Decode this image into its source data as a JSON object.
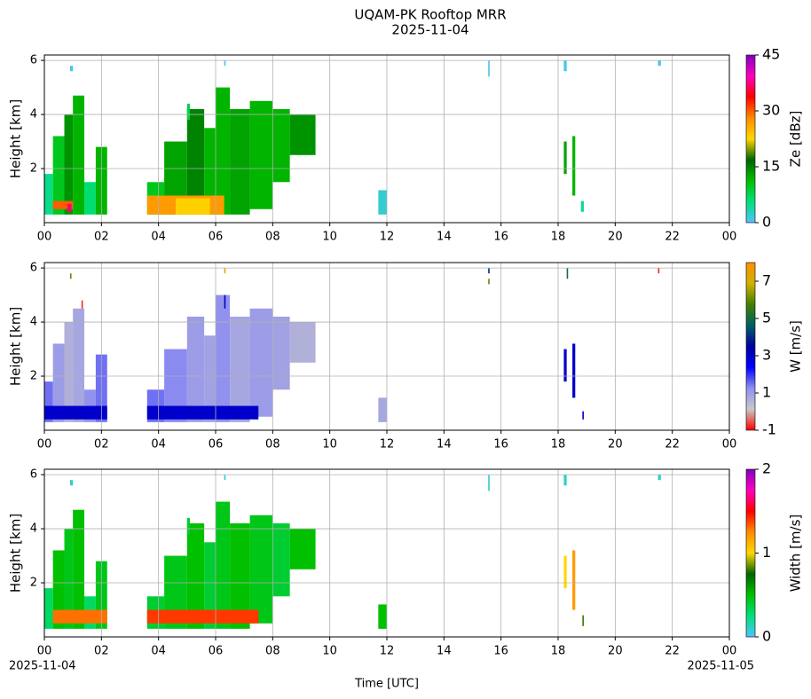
{
  "chart_data": {
    "type": "heatmap",
    "title": "UQAM-PK Rooftop MRR",
    "subtitle": "2025-11-04",
    "xlabel": "Time [UTC]",
    "date_start": "2025-11-04",
    "date_end": "2025-11-05",
    "xlim": [
      0,
      24
    ],
    "xticks": [
      {
        "value": 0,
        "label": "00"
      },
      {
        "value": 2,
        "label": "02"
      },
      {
        "value": 4,
        "label": "04"
      },
      {
        "value": 6,
        "label": "06"
      },
      {
        "value": 8,
        "label": "08"
      },
      10,
      12,
      14,
      16,
      18,
      20,
      22,
      {
        "value": 24,
        "label": "00"
      }
    ],
    "grid": true,
    "panels": [
      {
        "ylabel": "Height [km]",
        "ylim": [
          0,
          6.2
        ],
        "yticks": [
          2,
          4,
          6
        ],
        "colorbar": {
          "label": "Ze [dBz]",
          "lim": [
            0,
            45
          ],
          "ticks": [
            0,
            15,
            30,
            45
          ],
          "colors": [
            "#4fc3ff",
            "#00e07a",
            "#00c000",
            "#006400",
            "#ffd700",
            "#ff8c00",
            "#ff0000",
            "#ff00c0",
            "#8000c0"
          ]
        },
        "cells": [
          [
            0.0,
            0.3,
            0.3,
            1.8,
            5
          ],
          [
            0.3,
            0.7,
            0.3,
            3.2,
            10
          ],
          [
            0.7,
            1.0,
            0.3,
            4.0,
            14
          ],
          [
            1.0,
            1.4,
            0.3,
            4.7,
            12
          ],
          [
            1.4,
            1.8,
            0.3,
            1.5,
            6
          ],
          [
            1.8,
            2.2,
            0.3,
            2.8,
            12
          ],
          [
            0.3,
            1.0,
            0.5,
            0.8,
            30
          ],
          [
            0.8,
            0.95,
            0.4,
            0.7,
            37
          ],
          [
            3.6,
            4.2,
            0.3,
            1.5,
            10
          ],
          [
            4.2,
            5.0,
            0.3,
            3.0,
            13
          ],
          [
            5.0,
            5.6,
            0.3,
            4.2,
            15
          ],
          [
            5.6,
            6.0,
            0.3,
            3.5,
            12
          ],
          [
            6.0,
            6.5,
            0.3,
            5.0,
            12
          ],
          [
            6.5,
            7.2,
            0.3,
            4.2,
            13
          ],
          [
            7.2,
            8.0,
            0.5,
            4.5,
            12
          ],
          [
            8.0,
            8.6,
            1.5,
            4.2,
            12
          ],
          [
            8.6,
            9.5,
            2.5,
            4.0,
            14
          ],
          [
            3.6,
            6.3,
            0.3,
            1.0,
            27
          ],
          [
            4.6,
            5.8,
            0.3,
            0.9,
            23
          ],
          [
            11.7,
            12.0,
            0.3,
            1.2,
            2
          ],
          [
            18.2,
            18.3,
            1.8,
            3.0,
            13
          ],
          [
            18.5,
            18.6,
            1.0,
            3.2,
            12
          ],
          [
            18.8,
            18.9,
            0.4,
            0.8,
            5
          ],
          [
            0.9,
            1.0,
            5.6,
            5.8,
            1
          ],
          [
            5.0,
            5.1,
            3.8,
            4.4,
            8
          ],
          [
            6.3,
            6.35,
            5.8,
            6.0,
            1
          ],
          [
            15.55,
            15.6,
            5.4,
            6.0,
            1
          ],
          [
            18.2,
            18.3,
            5.6,
            6.0,
            1
          ],
          [
            21.5,
            21.6,
            5.8,
            6.0,
            1
          ]
        ]
      },
      {
        "ylabel": "Height [km]",
        "ylim": [
          0,
          6.2
        ],
        "yticks": [
          2,
          4,
          6
        ],
        "colorbar": {
          "label": "W [m/s]",
          "lim": [
            -1,
            8
          ],
          "ticks": [
            -1,
            1,
            3,
            5,
            7
          ],
          "colors": [
            "#ff0000",
            "#c8c8c8",
            "#9090f0",
            "#0000ff",
            "#0000a0",
            "#006060",
            "#408000",
            "#d0b000",
            "#ff9000"
          ]
        },
        "cells": [
          [
            0.0,
            0.3,
            0.3,
            1.8,
            1.5
          ],
          [
            0.3,
            0.7,
            0.3,
            3.2,
            1.0
          ],
          [
            0.7,
            1.0,
            0.3,
            4.0,
            0.6
          ],
          [
            1.0,
            1.4,
            0.3,
            4.5,
            0.8
          ],
          [
            1.4,
            1.8,
            0.3,
            1.5,
            1.2
          ],
          [
            1.8,
            2.2,
            0.3,
            2.8,
            1.5
          ],
          [
            0.0,
            2.2,
            0.4,
            0.9,
            3
          ],
          [
            3.6,
            4.2,
            0.3,
            1.5,
            1.5
          ],
          [
            4.2,
            5.0,
            0.3,
            3.0,
            1.3
          ],
          [
            5.0,
            5.6,
            0.3,
            4.2,
            1.0
          ],
          [
            5.6,
            6.0,
            0.3,
            3.5,
            0.9
          ],
          [
            6.0,
            6.5,
            0.3,
            5.0,
            1.2
          ],
          [
            6.5,
            7.2,
            0.3,
            4.2,
            0.8
          ],
          [
            7.2,
            8.0,
            0.5,
            4.5,
            1.0
          ],
          [
            8.0,
            8.6,
            1.5,
            4.2,
            0.9
          ],
          [
            8.6,
            9.5,
            2.5,
            4.0,
            0.6
          ],
          [
            3.6,
            7.5,
            0.4,
            0.9,
            3
          ],
          [
            11.7,
            12.0,
            0.3,
            1.2,
            0.8
          ],
          [
            18.2,
            18.3,
            1.8,
            3.0,
            3
          ],
          [
            18.5,
            18.6,
            1.2,
            3.2,
            3
          ],
          [
            18.85,
            18.9,
            0.4,
            0.7,
            3
          ],
          [
            0.9,
            0.95,
            5.6,
            5.8,
            6
          ],
          [
            1.3,
            1.35,
            4.5,
            4.8,
            -0.8
          ],
          [
            6.3,
            6.35,
            5.8,
            6.0,
            7.5
          ],
          [
            6.3,
            6.35,
            4.5,
            5.0,
            3
          ],
          [
            15.55,
            15.6,
            5.8,
            6.0,
            4
          ],
          [
            15.55,
            15.6,
            5.4,
            5.6,
            6
          ],
          [
            18.3,
            18.35,
            5.6,
            6.0,
            5
          ],
          [
            21.5,
            21.55,
            5.8,
            6.0,
            -0.8
          ]
        ]
      },
      {
        "ylabel": "Height [km]",
        "ylim": [
          0,
          6.2
        ],
        "yticks": [
          2,
          4,
          6
        ],
        "colorbar": {
          "label": "Width [m/s]",
          "lim": [
            0,
            2
          ],
          "ticks": [
            0,
            1,
            2
          ],
          "colors": [
            "#4fc3ff",
            "#00e07a",
            "#00c000",
            "#006400",
            "#ffd700",
            "#ff8c00",
            "#ff0000",
            "#ff00c0",
            "#8000c0"
          ]
        },
        "cells": [
          [
            0.0,
            0.3,
            0.3,
            1.8,
            0.3
          ],
          [
            0.3,
            0.7,
            0.3,
            3.2,
            0.5
          ],
          [
            0.7,
            1.0,
            0.3,
            4.0,
            0.45
          ],
          [
            1.0,
            1.4,
            0.3,
            4.7,
            0.5
          ],
          [
            1.4,
            1.8,
            0.3,
            1.5,
            0.3
          ],
          [
            1.8,
            2.2,
            0.3,
            2.8,
            0.45
          ],
          [
            0.3,
            2.2,
            0.5,
            1.0,
            1.3
          ],
          [
            3.6,
            4.2,
            0.3,
            1.5,
            0.4
          ],
          [
            4.2,
            5.0,
            0.3,
            3.0,
            0.45
          ],
          [
            5.0,
            5.6,
            0.3,
            4.2,
            0.5
          ],
          [
            5.6,
            6.0,
            0.3,
            3.5,
            0.4
          ],
          [
            6.0,
            6.5,
            0.3,
            5.0,
            0.45
          ],
          [
            6.5,
            7.2,
            0.3,
            4.2,
            0.5
          ],
          [
            7.2,
            8.0,
            0.5,
            4.5,
            0.45
          ],
          [
            8.0,
            8.6,
            1.5,
            4.2,
            0.4
          ],
          [
            8.6,
            9.5,
            2.5,
            4.0,
            0.5
          ],
          [
            3.6,
            7.5,
            0.5,
            1.0,
            1.4
          ],
          [
            11.7,
            12.0,
            0.3,
            1.2,
            0.5
          ],
          [
            18.2,
            18.3,
            1.8,
            3.0,
            1.0
          ],
          [
            18.5,
            18.6,
            1.0,
            3.2,
            1.2
          ],
          [
            18.85,
            18.9,
            0.4,
            0.8,
            0.8
          ],
          [
            0.9,
            1.0,
            5.6,
            5.8,
            0.1
          ],
          [
            5.0,
            5.1,
            3.8,
            4.4,
            0.4
          ],
          [
            6.3,
            6.35,
            5.8,
            6.0,
            0.1
          ],
          [
            15.55,
            15.6,
            5.4,
            6.0,
            0.1
          ],
          [
            18.2,
            18.3,
            5.6,
            6.0,
            0.1
          ],
          [
            21.5,
            21.6,
            5.8,
            6.0,
            0.1
          ]
        ]
      }
    ]
  }
}
